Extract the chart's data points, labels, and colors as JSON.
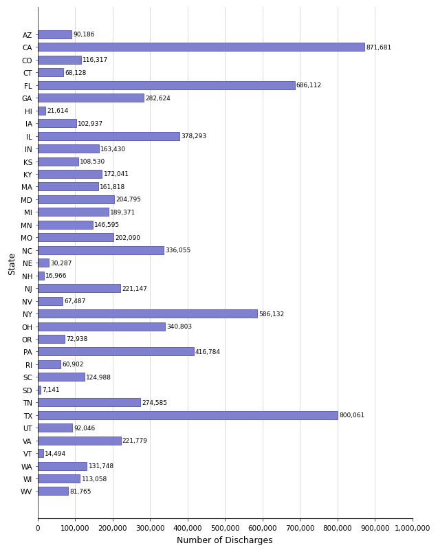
{
  "states": [
    "AZ",
    "CA",
    "CO",
    "CT",
    "FL",
    "GA",
    "HI",
    "IA",
    "IL",
    "IN",
    "KS",
    "KY",
    "MA",
    "MD",
    "MI",
    "MN",
    "MO",
    "NC",
    "NE",
    "NH",
    "NJ",
    "NV",
    "NY",
    "OH",
    "OR",
    "PA",
    "RI",
    "SC",
    "SD",
    "TN",
    "TX",
    "UT",
    "VA",
    "VT",
    "WA",
    "WI",
    "WV"
  ],
  "values": [
    90186,
    871681,
    116317,
    68128,
    686112,
    282624,
    21614,
    102937,
    378293,
    163430,
    108530,
    172041,
    161818,
    204795,
    189371,
    146595,
    202090,
    336055,
    30287,
    16966,
    221147,
    67487,
    586132,
    340803,
    72938,
    416784,
    60902,
    124988,
    7141,
    274585,
    800061,
    92046,
    221779,
    14494,
    131748,
    113058,
    81765
  ],
  "bar_color": "#8080d0",
  "bar_edge_color": "#4040a0",
  "xlabel": "Number of Discharges",
  "ylabel": "State",
  "xlim": [
    0,
    1000000
  ],
  "xticks": [
    0,
    100000,
    200000,
    300000,
    400000,
    500000,
    600000,
    700000,
    800000,
    900000,
    1000000
  ],
  "xtick_labels": [
    "0",
    "100,000",
    "200,000",
    "300,000",
    "400,000",
    "500,000",
    "600,000",
    "700,000",
    "800,000",
    "900,000",
    "1,000,000"
  ],
  "xlabel_fontsize": 9,
  "ylabel_fontsize": 9,
  "tick_fontsize": 7.5,
  "value_label_fontsize": 6.5,
  "bar_height": 0.65,
  "figure_width": 6.37,
  "figure_height": 8.04,
  "dpi": 100
}
